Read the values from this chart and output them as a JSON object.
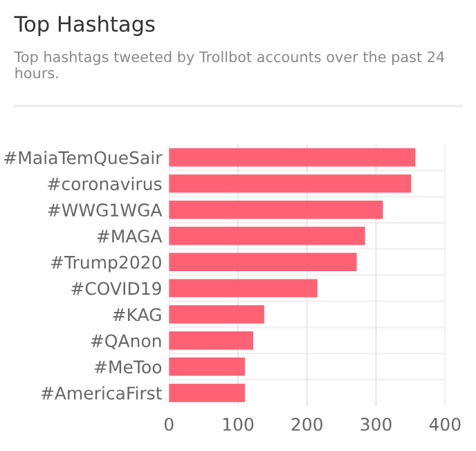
{
  "chart_data": {
    "type": "bar",
    "orientation": "horizontal",
    "title": "Top Hashtags",
    "subtitle": "Top hashtags tweeted by Trollbot accounts over the past 24 hours.",
    "categories": [
      "#MaiaTemQueSair",
      "#coronavirus",
      "#WWG1WGA",
      "#MAGA",
      "#Trump2020",
      "#COVID19",
      "#KAG",
      "#QAnon",
      "#MeToo",
      "#AmericaFirst"
    ],
    "values": [
      357,
      351,
      310,
      284,
      272,
      215,
      138,
      122,
      110,
      110
    ],
    "color": "#ff5a6e",
    "xlim": [
      0,
      400
    ],
    "xticks": [
      0,
      100,
      200,
      300,
      400
    ],
    "grid": true
  }
}
